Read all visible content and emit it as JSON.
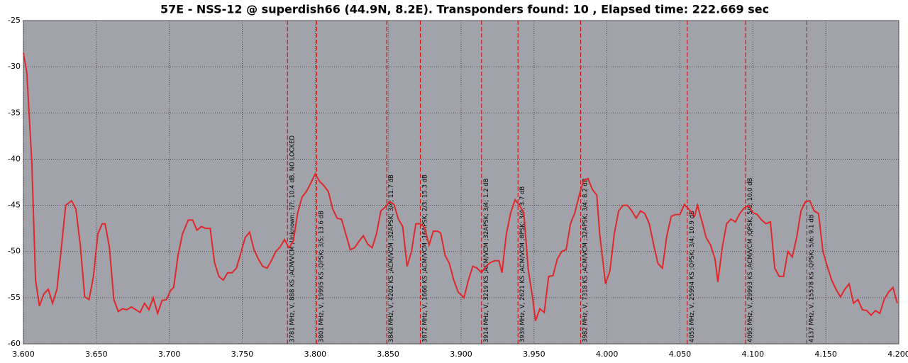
{
  "chart_data": {
    "type": "line",
    "title": "57E - NSS-12 @ superdish66 (44.9N, 8.2E). Transponders found: 10 , Elapsed time: 222.669 sec",
    "xlim": [
      3.6,
      4.2
    ],
    "xticks": [
      {
        "value": 3.6,
        "label": "3.600"
      },
      {
        "value": 3.65,
        "label": "3.650"
      },
      {
        "value": 3.7,
        "label": "3.700"
      },
      {
        "value": 3.75,
        "label": "3.750"
      },
      {
        "value": 3.8,
        "label": "3.800"
      },
      {
        "value": 3.85,
        "label": "3.850"
      },
      {
        "value": 3.9,
        "label": "3.900"
      },
      {
        "value": 3.95,
        "label": "3.950"
      },
      {
        "value": 4.0,
        "label": "4.000"
      },
      {
        "value": 4.05,
        "label": "4.050"
      },
      {
        "value": 4.1,
        "label": "4.100"
      },
      {
        "value": 4.15,
        "label": "4.150"
      },
      {
        "value": 4.2,
        "label": "4.200"
      }
    ],
    "ylim": [
      -60,
      -25
    ],
    "yticks": [
      -60,
      -55,
      -50,
      -45,
      -40,
      -35,
      -30,
      -25
    ],
    "grid": true,
    "x": [
      3.6,
      3.6024,
      3.6058,
      3.6083,
      3.611,
      3.614,
      3.617,
      3.62,
      3.623,
      3.626,
      3.629,
      3.633,
      3.636,
      3.639,
      3.642,
      3.645,
      3.648,
      3.651,
      3.654,
      3.656,
      3.659,
      3.662,
      3.665,
      3.668,
      3.671,
      3.674,
      3.677,
      3.68,
      3.683,
      3.686,
      3.689,
      3.692,
      3.695,
      3.698,
      3.701,
      3.703,
      3.706,
      3.709,
      3.713,
      3.716,
      3.719,
      3.722,
      3.725,
      3.728,
      3.731,
      3.734,
      3.737,
      3.74,
      3.743,
      3.746,
      3.749,
      3.752,
      3.755,
      3.758,
      3.761,
      3.764,
      3.767,
      3.77,
      3.773,
      3.776,
      3.779,
      3.782,
      3.785,
      3.788,
      3.791,
      3.794,
      3.797,
      3.8,
      3.803,
      3.806,
      3.809,
      3.812,
      3.815,
      3.818,
      3.821,
      3.824,
      3.827,
      3.83,
      3.833,
      3.836,
      3.839,
      3.842,
      3.845,
      3.848,
      3.851,
      3.854,
      3.857,
      3.86,
      3.863,
      3.866,
      3.869,
      3.872,
      3.875,
      3.878,
      3.881,
      3.884,
      3.886,
      3.889,
      3.892,
      3.895,
      3.898,
      3.902,
      3.905,
      3.908,
      3.911,
      3.914,
      3.917,
      3.92,
      3.923,
      3.926,
      3.928,
      3.931,
      3.934,
      3.937,
      3.94,
      3.943,
      3.946,
      3.949,
      3.951,
      3.954,
      3.957,
      3.96,
      3.963,
      3.966,
      3.969,
      3.972,
      3.975,
      3.978,
      3.981,
      3.984,
      3.987,
      3.99,
      3.993,
      3.995,
      3.999,
      4.002,
      4.005,
      4.008,
      4.011,
      4.014,
      4.017,
      4.02,
      4.023,
      4.026,
      4.029,
      4.032,
      4.035,
      4.038,
      4.041,
      4.044,
      4.047,
      4.05,
      4.053,
      4.056,
      4.06,
      4.062,
      4.065,
      4.068,
      4.071,
      4.074,
      4.076,
      4.079,
      4.082,
      4.085,
      4.088,
      4.091,
      4.094,
      4.097,
      4.1,
      4.103,
      4.106,
      4.109,
      4.112,
      4.115,
      4.118,
      4.121,
      4.124,
      4.127,
      4.13,
      4.133,
      4.136,
      4.139,
      4.142,
      4.145,
      4.148,
      4.151,
      4.154,
      4.157,
      4.16,
      4.163,
      4.166,
      4.169,
      4.172,
      4.175,
      4.178,
      4.181,
      4.184,
      4.187,
      4.19,
      4.193,
      4.196,
      4.199
    ],
    "series": [
      {
        "color": "#e0282a",
        "values": [
          -28.5,
          -30.7,
          -40.4,
          -53.1,
          -55.9,
          -54.6,
          -54.1,
          -55.6,
          -54.1,
          -49.6,
          -45.0,
          -44.5,
          -45.4,
          -49.3,
          -54.9,
          -55.2,
          -52.7,
          -48.1,
          -47.0,
          -47.0,
          -49.6,
          -55.2,
          -56.5,
          -56.2,
          -56.3,
          -56.0,
          -56.3,
          -56.6,
          -55.6,
          -56.3,
          -55.0,
          -56.7,
          -55.3,
          -55.2,
          -54.2,
          -53.9,
          -50.4,
          -48.1,
          -46.6,
          -46.6,
          -47.7,
          -47.3,
          -47.5,
          -47.5,
          -51.2,
          -52.7,
          -53.1,
          -52.3,
          -52.3,
          -51.8,
          -50.2,
          -48.5,
          -47.9,
          -49.8,
          -50.8,
          -51.6,
          -51.8,
          -51.0,
          -50.0,
          -49.5,
          -48.7,
          -49.6,
          -48.9,
          -45.8,
          -44.1,
          -43.5,
          -42.6,
          -41.6,
          -42.4,
          -42.9,
          -43.5,
          -45.4,
          -46.4,
          -46.5,
          -48.1,
          -49.8,
          -49.6,
          -48.9,
          -48.3,
          -49.2,
          -49.6,
          -48.1,
          -45.6,
          -45.2,
          -44.6,
          -44.9,
          -46.5,
          -47.3,
          -51.6,
          -50.0,
          -47.0,
          -47.0,
          -47.4,
          -49.3,
          -47.8,
          -47.8,
          -48.0,
          -50.4,
          -51.3,
          -53.1,
          -54.4,
          -55.0,
          -53.1,
          -51.6,
          -51.8,
          -52.3,
          -51.6,
          -51.2,
          -51.0,
          -51.0,
          -52.3,
          -48.1,
          -45.8,
          -44.4,
          -45.0,
          -45.8,
          -51.9,
          -55.0,
          -57.5,
          -56.2,
          -56.6,
          -52.7,
          -52.6,
          -50.8,
          -50.0,
          -49.8,
          -47.0,
          -45.8,
          -43.9,
          -42.3,
          -42.1,
          -43.3,
          -43.9,
          -48.1,
          -53.5,
          -52.1,
          -48.1,
          -45.6,
          -45.0,
          -45.0,
          -45.6,
          -46.4,
          -45.6,
          -45.9,
          -47.0,
          -49.3,
          -51.3,
          -51.8,
          -48.3,
          -46.2,
          -46.0,
          -46.0,
          -44.9,
          -45.4,
          -46.2,
          -45.0,
          -46.7,
          -48.5,
          -49.3,
          -50.8,
          -53.3,
          -49.6,
          -47.0,
          -46.5,
          -46.8,
          -45.9,
          -45.3,
          -45.0,
          -45.8,
          -46.0,
          -46.6,
          -47.0,
          -46.8,
          -51.8,
          -52.7,
          -52.7,
          -50.0,
          -50.6,
          -48.5,
          -45.6,
          -44.6,
          -44.5,
          -45.6,
          -45.9,
          -50.0,
          -51.6,
          -53.1,
          -54.1,
          -54.9,
          -54.1,
          -53.5,
          -55.6,
          -55.2,
          -56.3,
          -56.4,
          -56.9,
          -56.4,
          -56.7,
          -55.2,
          -54.4,
          -53.9,
          -55.6
        ]
      }
    ],
    "marker_color": "#d40000",
    "markers": [
      {
        "x": 3.781,
        "label": "3781 MHz, V, 888 KS ;ACM/VCM ;Unknown; ?/?; 10.4 dB, NO LOCKED"
      },
      {
        "x": 3.801,
        "label": "3801 MHz, V, 19995 KS ;QPSK; 3/5; 13.6 dB"
      },
      {
        "x": 3.849,
        "label": "3849 MHz, V, 4202 KS ;ACM/VCM ;32APSK; 3/4; 11.7 dB"
      },
      {
        "x": 3.872,
        "label": "3872 MHz, V, 1666 KS ;ACM/VCM ;16APSK; 2/3; 15.3 dB"
      },
      {
        "x": 3.914,
        "label": "3914 MHz, V, 3219 KS ;ACM/VCM ;32APSK; 3/4; 1.2 dB"
      },
      {
        "x": 3.939,
        "label": "3939 MHz, V, 2621 KS ;ACM/VCM ;8PSK; 3/4; 3.7 dB"
      },
      {
        "x": 3.982,
        "label": "3982 MHz, V, 7318 KS ;ACM/VCM ;32APSK; 3/4; 8.2 dB"
      },
      {
        "x": 4.055,
        "label": "4055 MHz, V, 25994 KS ;QPSK; 3/4; 10.9 dB"
      },
      {
        "x": 4.095,
        "label": "4095 MHz, V, 29993 KS ;ACM/VCM ;QPSK; 5/6; 10.0 dB"
      },
      {
        "x": 4.137,
        "label": "4137 MHz, V, 15578 KS ;QPSK; 5/6; 9.1 dB"
      }
    ]
  }
}
